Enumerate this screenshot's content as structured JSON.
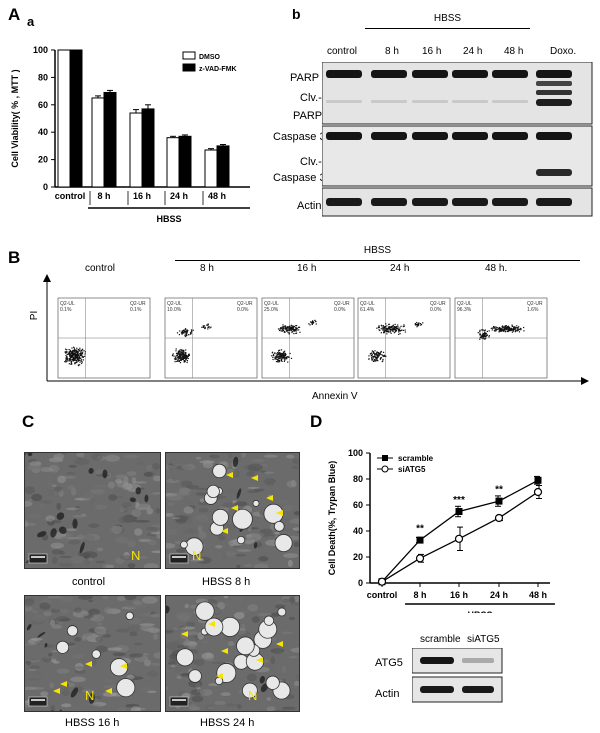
{
  "panel_labels": {
    "A": "A",
    "a": "a",
    "b": "b",
    "B": "B",
    "C": "C",
    "D": "D"
  },
  "panel_a": {
    "ylabel": "Cell Viability( % , MTT )",
    "yticks": [
      "0",
      "20",
      "40",
      "60",
      "80",
      "100"
    ],
    "legend": [
      "DMSO",
      "z-VAD-FMK"
    ],
    "xlabel": "HBSS"
  },
  "panel_b": {
    "hbss_label": "HBSS",
    "columns": [
      "control",
      "8 h",
      "16 h",
      "24 h",
      "48 h",
      "Doxo."
    ],
    "blot_labels": [
      "PARP",
      "Clv.-",
      "PARP",
      "Caspase 3",
      "Clv.-",
      "Caspase 3",
      "Actin"
    ]
  },
  "panel_B": {
    "hbss_label": "HBSS",
    "conditions": [
      "control",
      "8 h",
      "16 h",
      "24 h",
      "48 h."
    ],
    "q_ul_labels": [
      "Q2-UL",
      "Q2-UL",
      "Q2-UL",
      "Q2-UL",
      "Q2-UL"
    ],
    "q_ul_values": [
      "0.1%",
      "10.0%",
      "25.0%",
      "61.4%",
      "96.3%"
    ],
    "q_ur_labels": [
      "Q2-UR",
      "Q2-UR",
      "Q2-UR",
      "Q2-UR",
      "Q2-UR"
    ],
    "q_ur_values": [
      "0.1%",
      "0.0%",
      "0.0%",
      "0.0%",
      "1.6%"
    ],
    "ylabel": "PI",
    "xlabel": "Annexin V"
  },
  "panel_C": {
    "captions": [
      "control",
      "HBSS  8 h",
      "HBSS 16 h",
      "HBSS  24 h"
    ],
    "nucleus_label": "N"
  },
  "panel_D": {
    "ylabel": "Cell Death(%, Trypan Blue)",
    "yticks": [
      "0",
      "20",
      "40",
      "60",
      "80",
      "100"
    ],
    "legend": [
      "scramble",
      "siATG5"
    ],
    "xlabel": "HBSS",
    "significance": [
      "**",
      "***",
      "**"
    ],
    "blot_columns": [
      "scramble",
      "siATG5"
    ],
    "blot_labels": [
      "ATG5",
      "Actin"
    ]
  },
  "chart_data": [
    {
      "type": "bar",
      "title": "",
      "xlabel": "HBSS",
      "ylabel": "Cell Viability( % , MTT )",
      "ylim": [
        0,
        100
      ],
      "grid": false,
      "legend_position": "top-right",
      "categories": [
        "control",
        "8 h",
        "16 h",
        "24 h",
        "48 h"
      ],
      "series": [
        {
          "name": "DMSO",
          "values": [
            100,
            65,
            54,
            36,
            27
          ],
          "errors": [
            0,
            1.5,
            2.5,
            1,
            1
          ],
          "color": "#ffffff"
        },
        {
          "name": "z-VAD-FMK",
          "values": [
            100,
            69,
            57,
            37,
            30
          ],
          "errors": [
            0,
            1.5,
            3,
            1,
            1
          ],
          "color": "#000000"
        }
      ]
    },
    {
      "type": "line",
      "title": "",
      "xlabel": "HBSS",
      "ylabel": "Cell Death(%, Trypan Blue)",
      "ylim": [
        0,
        100
      ],
      "grid": false,
      "legend_position": "top-left",
      "categories": [
        "control",
        "8 h",
        "16 h",
        "24 h",
        "48 h"
      ],
      "series": [
        {
          "name": "scramble",
          "values": [
            1,
            33,
            55,
            63,
            79
          ],
          "errors": [
            1,
            2,
            4,
            4,
            3
          ],
          "marker": "filled-square"
        },
        {
          "name": "siATG5",
          "values": [
            1,
            19,
            34,
            50,
            70
          ],
          "errors": [
            1,
            3,
            9,
            2,
            5
          ],
          "marker": "open-circle"
        }
      ]
    }
  ]
}
